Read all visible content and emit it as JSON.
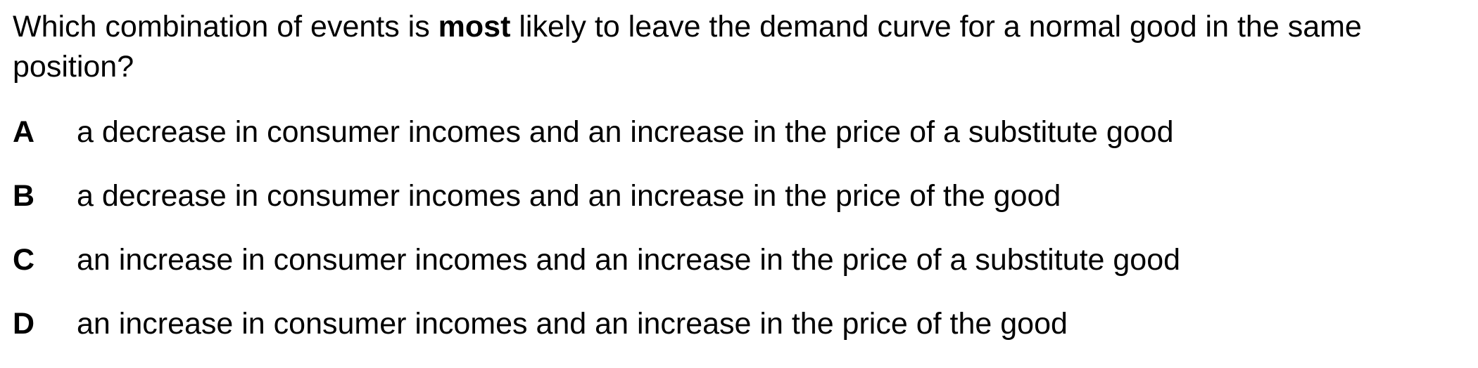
{
  "question": {
    "before": "Which combination of events is ",
    "emphasis": "most",
    "after": " likely to leave the demand curve for a normal good in the same position?"
  },
  "options": [
    {
      "letter": "A",
      "text": "a decrease in consumer incomes and an increase in the price of a substitute good"
    },
    {
      "letter": "B",
      "text": "a decrease in consumer incomes and an increase in the price of the good"
    },
    {
      "letter": "C",
      "text": "an increase in consumer incomes and an increase in the price of a substitute good"
    },
    {
      "letter": "D",
      "text": "an increase in consumer incomes and an increase in the price of the good"
    }
  ]
}
